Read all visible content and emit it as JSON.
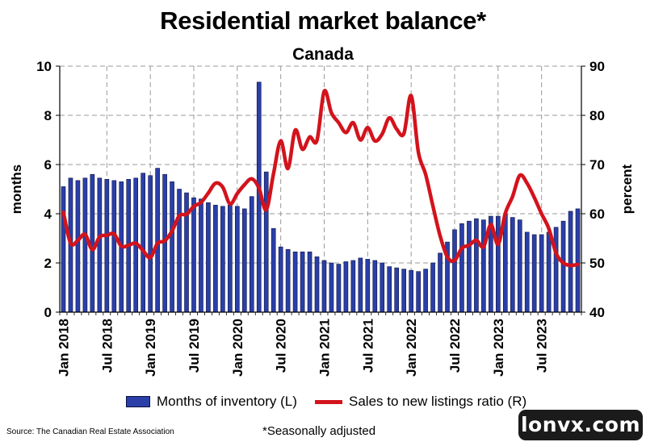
{
  "title": "Residential market balance*",
  "subtitle": "Canada",
  "chart_data": {
    "type": "bar+line",
    "x": [
      "Jan 2018",
      "Feb 2018",
      "Mar 2018",
      "Apr 2018",
      "May 2018",
      "Jun 2018",
      "Jul 2018",
      "Aug 2018",
      "Sep 2018",
      "Oct 2018",
      "Nov 2018",
      "Dec 2018",
      "Jan 2019",
      "Feb 2019",
      "Mar 2019",
      "Apr 2019",
      "May 2019",
      "Jun 2019",
      "Jul 2019",
      "Aug 2019",
      "Sep 2019",
      "Oct 2019",
      "Nov 2019",
      "Dec 2019",
      "Jan 2020",
      "Feb 2020",
      "Mar 2020",
      "Apr 2020",
      "May 2020",
      "Jun 2020",
      "Jul 2020",
      "Aug 2020",
      "Sep 2020",
      "Oct 2020",
      "Nov 2020",
      "Dec 2020",
      "Jan 2021",
      "Feb 2021",
      "Mar 2021",
      "Apr 2021",
      "May 2021",
      "Jun 2021",
      "Jul 2021",
      "Aug 2021",
      "Sep 2021",
      "Oct 2021",
      "Nov 2021",
      "Dec 2021",
      "Jan 2022",
      "Feb 2022",
      "Mar 2022",
      "Apr 2022",
      "May 2022",
      "Jun 2022",
      "Jul 2022",
      "Aug 2022",
      "Sep 2022",
      "Oct 2022",
      "Nov 2022",
      "Dec 2022",
      "Jan 2023",
      "Feb 2023",
      "Mar 2023",
      "Apr 2023",
      "May 2023",
      "Jun 2023",
      "Jul 2023",
      "Aug 2023",
      "Sep 2023",
      "Oct 2023",
      "Nov 2023",
      "Dec 2023"
    ],
    "xtick_labels": [
      "Jan 2018",
      "Jul 2018",
      "Jan 2019",
      "Jul 2019",
      "Jan 2020",
      "Jul 2020",
      "Jan 2021",
      "Jul 2021",
      "Jan 2022",
      "Jul 2022",
      "Jan 2023",
      "Jul 2023"
    ],
    "series": [
      {
        "name": "Months of inventory (L)",
        "type": "bar",
        "axis": "left",
        "color": "#2a3fa8",
        "values": [
          5.1,
          5.45,
          5.35,
          5.45,
          5.6,
          5.45,
          5.4,
          5.35,
          5.3,
          5.4,
          5.45,
          5.65,
          5.55,
          5.85,
          5.6,
          5.3,
          5.0,
          4.85,
          4.65,
          4.6,
          4.45,
          4.35,
          4.3,
          4.35,
          4.3,
          4.2,
          4.7,
          9.35,
          5.7,
          3.4,
          2.65,
          2.55,
          2.45,
          2.45,
          2.45,
          2.25,
          2.1,
          2.0,
          1.95,
          2.05,
          2.1,
          2.2,
          2.15,
          2.1,
          2.0,
          1.85,
          1.8,
          1.75,
          1.7,
          1.65,
          1.75,
          2.0,
          2.4,
          2.85,
          3.35,
          3.6,
          3.7,
          3.8,
          3.75,
          3.9,
          3.9,
          4.0,
          3.85,
          3.75,
          3.25,
          3.15,
          3.15,
          3.25,
          3.45,
          3.7,
          4.1,
          4.2
        ]
      },
      {
        "name": "Sales to new listings ratio (R)",
        "type": "line",
        "axis": "right",
        "color": "#d3131c",
        "values": [
          60.3,
          54.0,
          54.6,
          55.8,
          52.7,
          55.3,
          55.6,
          55.9,
          53.4,
          53.6,
          54.0,
          52.5,
          51.1,
          54.0,
          54.5,
          56.5,
          59.6,
          59.9,
          61.5,
          62.3,
          64.2,
          66.2,
          65.4,
          62.0,
          64.1,
          65.9,
          67.1,
          65.2,
          60.8,
          68.1,
          74.8,
          69.2,
          77.0,
          73.1,
          75.6,
          74.9,
          84.9,
          80.5,
          78.5,
          76.5,
          78.5,
          75.0,
          77.5,
          74.8,
          76.2,
          79.5,
          77.2,
          76.3,
          84.0,
          72.5,
          68.0,
          61.6,
          55.5,
          51.2,
          50.5,
          53.0,
          53.6,
          54.6,
          53.3,
          57.8,
          53.8,
          60.1,
          63.5,
          67.8,
          66.2,
          63.3,
          60.0,
          57.0,
          52.0,
          50.0,
          49.5,
          49.7
        ]
      }
    ],
    "y_left": {
      "label": "months",
      "min": 0,
      "max": 10,
      "ticks": [
        0,
        2,
        4,
        6,
        8,
        10
      ]
    },
    "y_right": {
      "label": "percent",
      "min": 40,
      "max": 90,
      "ticks": [
        40,
        50,
        60,
        70,
        80,
        90
      ]
    },
    "grid": "horizontal dashed and vertical dashed",
    "legend_placement": "bottom"
  },
  "legend": {
    "bar_label": "Months of inventory (L)",
    "line_label": "Sales to new listings ratio (R)"
  },
  "footnote": "*Seasonally adjusted",
  "source": "Source: The Canadian Real Estate Association",
  "brand": "lonvx.com"
}
